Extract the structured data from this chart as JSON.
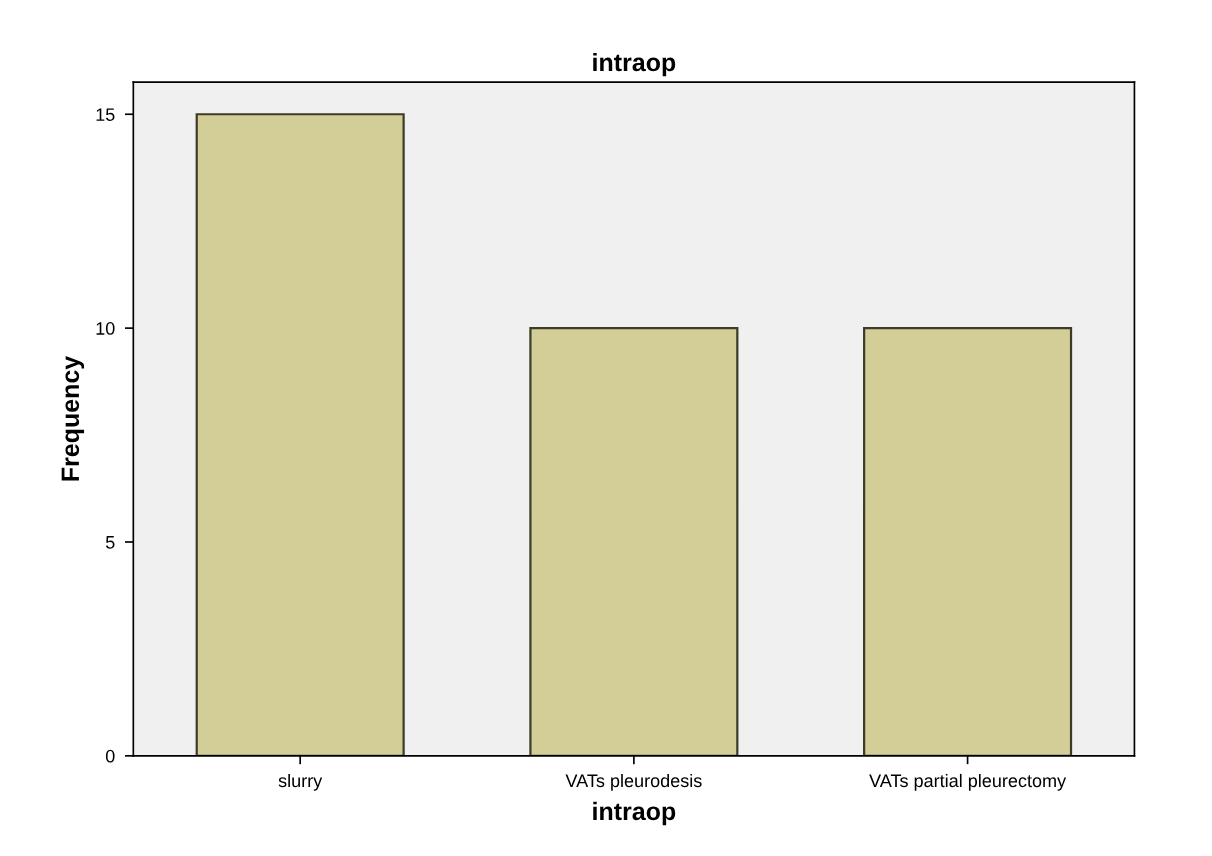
{
  "chart_data": {
    "type": "bar",
    "title": "intraop",
    "xlabel": "intraop",
    "ylabel": "Frequency",
    "categories": [
      "slurry",
      "VATs pleurodesis",
      "VATs partial pleurectomy"
    ],
    "values": [
      15,
      10,
      10
    ],
    "color": "#d3ce98",
    "ylim": [
      0,
      15.75
    ],
    "yticks": [
      0,
      5,
      10,
      15
    ],
    "grid": false,
    "legend": false
  }
}
